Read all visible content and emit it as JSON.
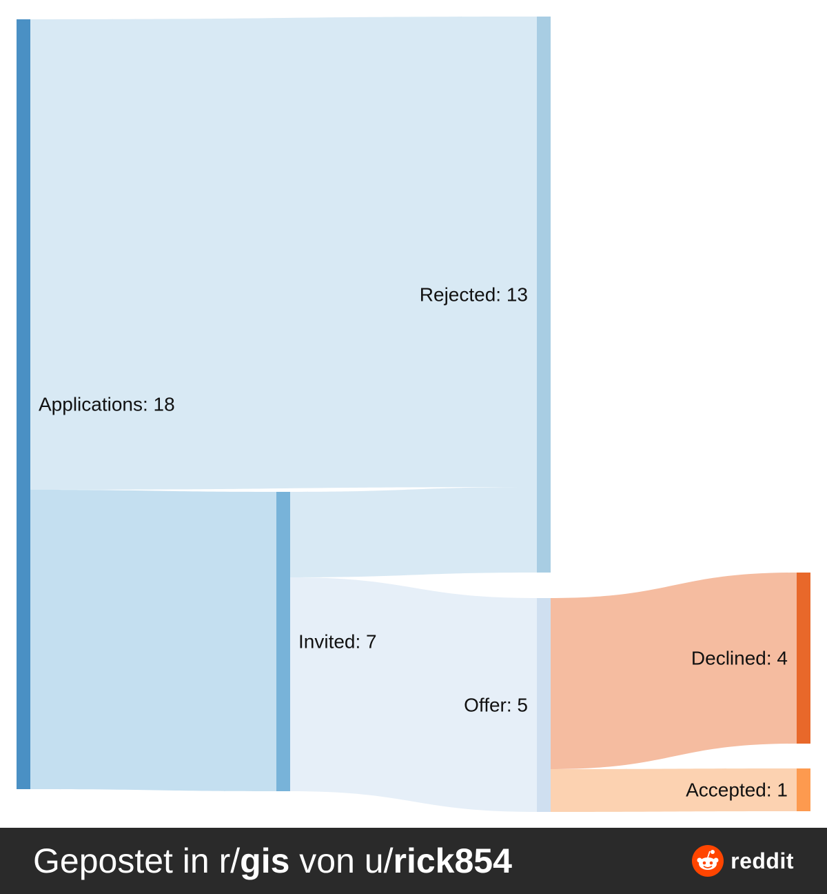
{
  "chart_data": {
    "type": "sankey",
    "nodes": [
      {
        "id": "applications",
        "label": "Applications: 18",
        "value": 18,
        "color": "#4a90c4"
      },
      {
        "id": "rejected",
        "label": "Rejected: 13",
        "value": 13,
        "color": "#a8cde3"
      },
      {
        "id": "invited",
        "label": "Invited: 7",
        "value": 7,
        "color": "#78b3d9"
      },
      {
        "id": "offer",
        "label": "Offer: 5",
        "value": 5,
        "color": "#cfdff0"
      },
      {
        "id": "declined",
        "label": "Declined: 4",
        "value": 4,
        "color": "#e8682a"
      },
      {
        "id": "accepted",
        "label": "Accepted: 1",
        "value": 1,
        "color": "#fd9a4f"
      }
    ],
    "links": [
      {
        "source": "applications",
        "target": "rejected",
        "value": 11,
        "color": "#d8e9f4"
      },
      {
        "source": "applications",
        "target": "invited",
        "value": 7,
        "color": "#c4dff0"
      },
      {
        "source": "invited",
        "target": "rejected",
        "value": 2,
        "color": "#d8e9f4"
      },
      {
        "source": "invited",
        "target": "offer",
        "value": 5,
        "color": "#e6eff8"
      },
      {
        "source": "offer",
        "target": "declined",
        "value": 4,
        "color": "#f5bca0"
      },
      {
        "source": "offer",
        "target": "accepted",
        "value": 1,
        "color": "#fcd2b1"
      }
    ]
  },
  "footer": {
    "prefix": "Gepostet in r/",
    "subreddit": "gis",
    "middle": " von u/",
    "user": "rick854",
    "brand": "reddit"
  },
  "colors": {
    "footer_bg": "#2a2a2a",
    "reddit_orange": "#ff4500"
  }
}
